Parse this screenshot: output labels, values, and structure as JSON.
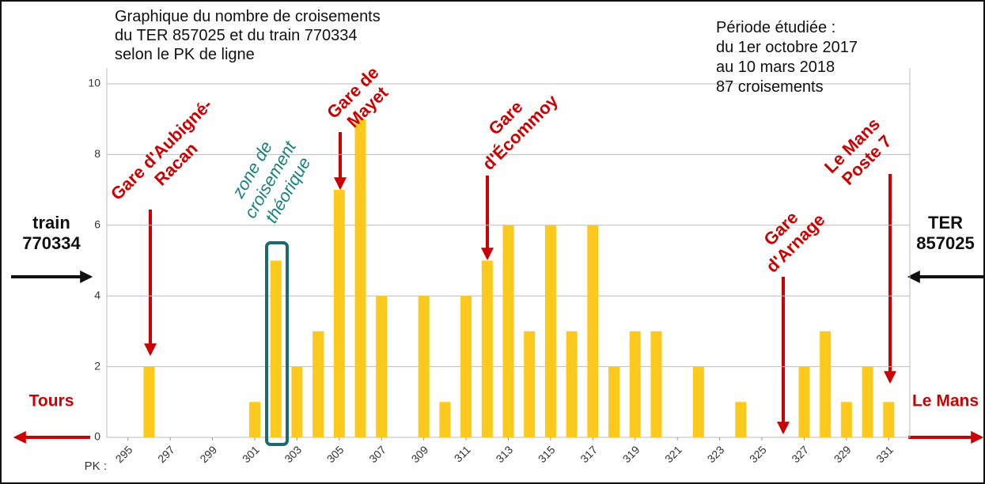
{
  "chart_data": {
    "type": "bar",
    "title_lines": [
      "Graphique du nombre de croisements",
      "du TER 857025 et du train 770334",
      "selon le PK de ligne"
    ],
    "period_lines": [
      "Période étudiée :",
      "du 1er octobre 2017",
      "au 10 mars 2018",
      "87 croisements"
    ],
    "left_label_lines": [
      "train",
      "770334"
    ],
    "right_label_lines": [
      "TER",
      "857025"
    ],
    "left_direction": "Tours",
    "right_direction": "Le Mans",
    "x_label": "PK :",
    "annotations": [
      {
        "lines": [
          "Gare d'Aubigné-",
          "Racan"
        ]
      },
      {
        "lines": [
          "zone de",
          "croisement",
          "théorique"
        ]
      },
      {
        "lines": [
          "Gare de",
          "Mayet"
        ]
      },
      {
        "lines": [
          "Gare",
          "d'Écommoy"
        ]
      },
      {
        "lines": [
          "Gare",
          "d'Arnage"
        ]
      },
      {
        "lines": [
          "Le Mans",
          "Poste 7"
        ]
      }
    ],
    "x": [
      296,
      301,
      302,
      303,
      304,
      305,
      306,
      307,
      309,
      310,
      311,
      312,
      313,
      314,
      315,
      316,
      317,
      318,
      319,
      320,
      322,
      324,
      327,
      328,
      329,
      330,
      331
    ],
    "values": [
      2,
      1,
      5,
      2,
      3,
      7,
      9,
      4,
      4,
      1,
      4,
      5,
      6,
      3,
      6,
      3,
      6,
      2,
      3,
      3,
      2,
      1,
      2,
      3,
      1,
      2,
      1
    ],
    "color": "#fdc91c",
    "xlim": [
      294,
      332
    ],
    "xticks": [
      295,
      297,
      299,
      301,
      303,
      305,
      307,
      309,
      311,
      313,
      315,
      317,
      319,
      321,
      323,
      325,
      327,
      329,
      331
    ],
    "ylim": [
      0,
      10
    ],
    "yticks": [
      0,
      2,
      4,
      6,
      8,
      10
    ],
    "grid": true
  }
}
